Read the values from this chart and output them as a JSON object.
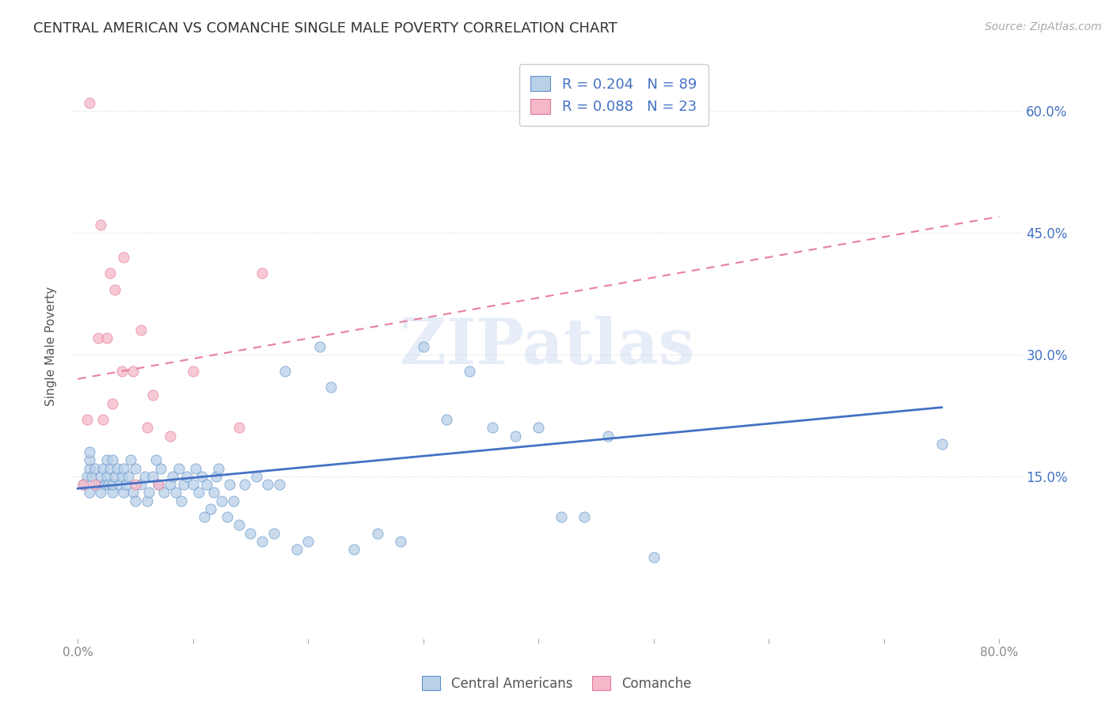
{
  "title": "CENTRAL AMERICAN VS COMANCHE SINGLE MALE POVERTY CORRELATION CHART",
  "source": "Source: ZipAtlas.com",
  "ylabel": "Single Male Poverty",
  "ytick_values": [
    0.15,
    0.3,
    0.45,
    0.6
  ],
  "ytick_labels": [
    "15.0%",
    "30.0%",
    "45.0%",
    "60.0%"
  ],
  "xtick_values": [
    0.0,
    0.1,
    0.2,
    0.3,
    0.4,
    0.5,
    0.6,
    0.7,
    0.8
  ],
  "xtick_labels": [
    "0.0%",
    "",
    "",
    "",
    "",
    "",
    "",
    "",
    "80.0%"
  ],
  "xlim": [
    -0.005,
    0.82
  ],
  "ylim": [
    -0.05,
    0.67
  ],
  "legend_blue_r": "R = 0.204",
  "legend_blue_n": "N = 89",
  "legend_pink_r": "R = 0.088",
  "legend_pink_n": "N = 23",
  "blue_color": "#b8d0e8",
  "pink_color": "#f5b8c8",
  "blue_edge_color": "#6090c8",
  "pink_edge_color": "#e07898",
  "blue_line_color": "#4472c4",
  "pink_line_color": "#e87fa0",
  "text_color": "#4472c4",
  "watermark": "ZIPatlas",
  "legend_label_blue": "Central Americans",
  "legend_label_pink": "Comanche",
  "blue_scatter": {
    "x": [
      0.005,
      0.008,
      0.01,
      0.01,
      0.01,
      0.01,
      0.012,
      0.015,
      0.018,
      0.02,
      0.02,
      0.022,
      0.024,
      0.025,
      0.025,
      0.027,
      0.028,
      0.03,
      0.03,
      0.03,
      0.032,
      0.034,
      0.036,
      0.038,
      0.04,
      0.04,
      0.042,
      0.044,
      0.046,
      0.048,
      0.05,
      0.05,
      0.055,
      0.058,
      0.06,
      0.062,
      0.065,
      0.068,
      0.07,
      0.072,
      0.075,
      0.08,
      0.082,
      0.085,
      0.088,
      0.09,
      0.092,
      0.095,
      0.1,
      0.102,
      0.105,
      0.108,
      0.11,
      0.112,
      0.115,
      0.118,
      0.12,
      0.122,
      0.125,
      0.13,
      0.132,
      0.135,
      0.14,
      0.145,
      0.15,
      0.155,
      0.16,
      0.165,
      0.17,
      0.175,
      0.18,
      0.19,
      0.2,
      0.21,
      0.22,
      0.24,
      0.26,
      0.28,
      0.3,
      0.32,
      0.34,
      0.36,
      0.38,
      0.4,
      0.42,
      0.44,
      0.46,
      0.5,
      0.75
    ],
    "y": [
      0.14,
      0.15,
      0.13,
      0.16,
      0.17,
      0.18,
      0.15,
      0.16,
      0.14,
      0.13,
      0.15,
      0.16,
      0.14,
      0.15,
      0.17,
      0.14,
      0.16,
      0.13,
      0.14,
      0.17,
      0.15,
      0.16,
      0.14,
      0.15,
      0.13,
      0.16,
      0.14,
      0.15,
      0.17,
      0.13,
      0.12,
      0.16,
      0.14,
      0.15,
      0.12,
      0.13,
      0.15,
      0.17,
      0.14,
      0.16,
      0.13,
      0.14,
      0.15,
      0.13,
      0.16,
      0.12,
      0.14,
      0.15,
      0.14,
      0.16,
      0.13,
      0.15,
      0.1,
      0.14,
      0.11,
      0.13,
      0.15,
      0.16,
      0.12,
      0.1,
      0.14,
      0.12,
      0.09,
      0.14,
      0.08,
      0.15,
      0.07,
      0.14,
      0.08,
      0.14,
      0.28,
      0.06,
      0.07,
      0.31,
      0.26,
      0.06,
      0.08,
      0.07,
      0.31,
      0.22,
      0.28,
      0.21,
      0.2,
      0.21,
      0.1,
      0.1,
      0.2,
      0.05,
      0.19
    ]
  },
  "pink_scatter": {
    "x": [
      0.005,
      0.008,
      0.01,
      0.015,
      0.018,
      0.02,
      0.022,
      0.025,
      0.028,
      0.03,
      0.032,
      0.038,
      0.04,
      0.048,
      0.05,
      0.055,
      0.06,
      0.065,
      0.07,
      0.08,
      0.1,
      0.14,
      0.16
    ],
    "y": [
      0.14,
      0.22,
      0.61,
      0.14,
      0.32,
      0.46,
      0.22,
      0.32,
      0.4,
      0.24,
      0.38,
      0.28,
      0.42,
      0.28,
      0.14,
      0.33,
      0.21,
      0.25,
      0.14,
      0.2,
      0.28,
      0.21,
      0.4
    ]
  },
  "blue_trend": {
    "x_start": 0.0,
    "x_end": 0.75,
    "y_start": 0.135,
    "y_end": 0.235
  },
  "pink_trend": {
    "x_start": 0.0,
    "x_end": 0.8,
    "y_start": 0.27,
    "y_end": 0.47
  }
}
